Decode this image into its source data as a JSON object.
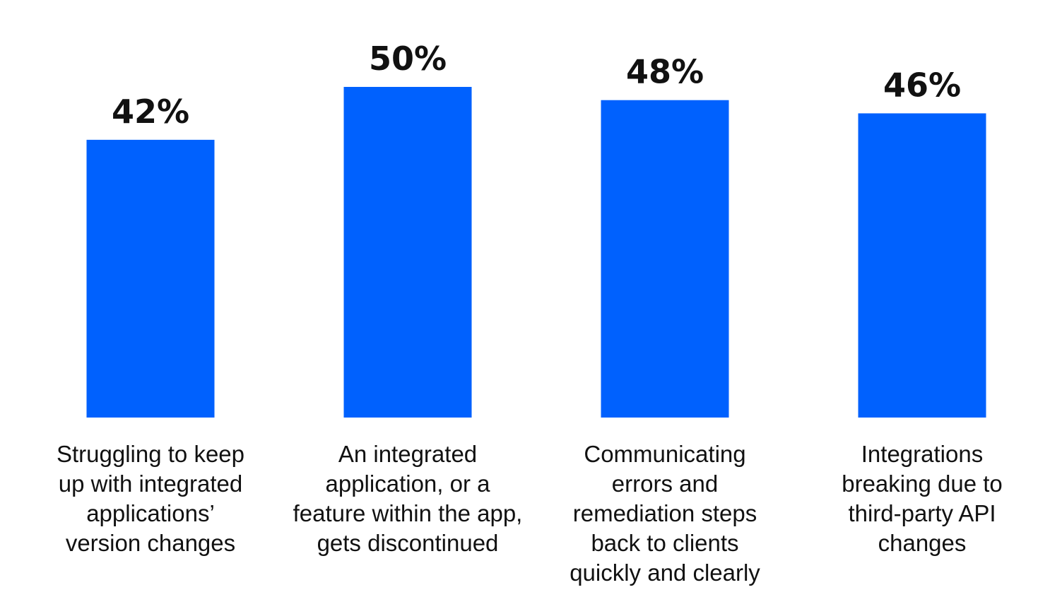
{
  "chart_data": {
    "type": "bar",
    "categories": [
      [
        "Struggling to keep",
        "up with integrated",
        "applications’",
        "version changes"
      ],
      [
        "An integrated",
        "application, or a",
        "feature within the app,",
        "gets discontinued"
      ],
      [
        "Communicating",
        "errors and",
        "remediation steps",
        "back to clients",
        "quickly and clearly"
      ],
      [
        "Integrations",
        "breaking due to",
        "third-party API",
        "changes"
      ]
    ],
    "values": [
      42,
      50,
      48,
      46
    ],
    "value_labels": [
      "42%",
      "50%",
      "48%",
      "46%"
    ],
    "title": "",
    "xlabel": "",
    "ylabel": "",
    "ylim": [
      0,
      100
    ],
    "grid": false,
    "bar_color": "#0061fe",
    "text_color": "#111111"
  }
}
